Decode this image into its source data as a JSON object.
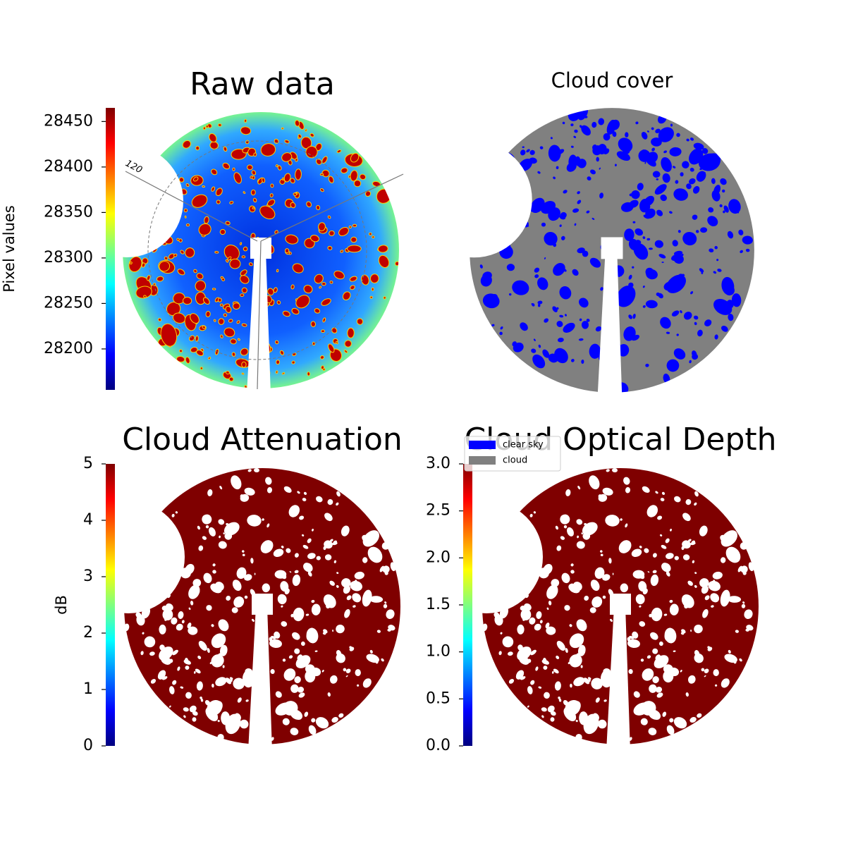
{
  "chart_data": [
    {
      "type": "image",
      "title": "Raw data",
      "annotation": "120",
      "colorbar": {
        "label": "Pixel values",
        "colormap": "jet",
        "lim": [
          28155,
          28465
        ],
        "ticks": [
          28200,
          28250,
          28300,
          28350,
          28400,
          28450
        ]
      }
    },
    {
      "type": "image",
      "title": "Cloud cover",
      "series": [
        {
          "name": "clear sky",
          "color": "#0000ff"
        },
        {
          "name": "cloud",
          "color": "#808080"
        }
      ]
    },
    {
      "type": "image",
      "title": "Cloud Attenuation",
      "colorbar": {
        "label": "dB",
        "colormap": "jet",
        "lim": [
          0,
          5
        ],
        "ticks": [
          0,
          1,
          2,
          3,
          4,
          5
        ]
      }
    },
    {
      "type": "image",
      "title": "Cloud Optical Depth",
      "colorbar": {
        "colormap": "jet",
        "lim": [
          0,
          3
        ],
        "ticks": [
          {
            "value": 0,
            "label": "0.0"
          },
          {
            "value": 0.5,
            "label": "0.5"
          },
          {
            "value": 1,
            "label": "1.0"
          },
          {
            "value": 1.5,
            "label": "1.5"
          },
          {
            "value": 2,
            "label": "2.0"
          },
          {
            "value": 2.5,
            "label": "2.5"
          },
          {
            "value": 3,
            "label": "3.0"
          }
        ]
      }
    }
  ]
}
